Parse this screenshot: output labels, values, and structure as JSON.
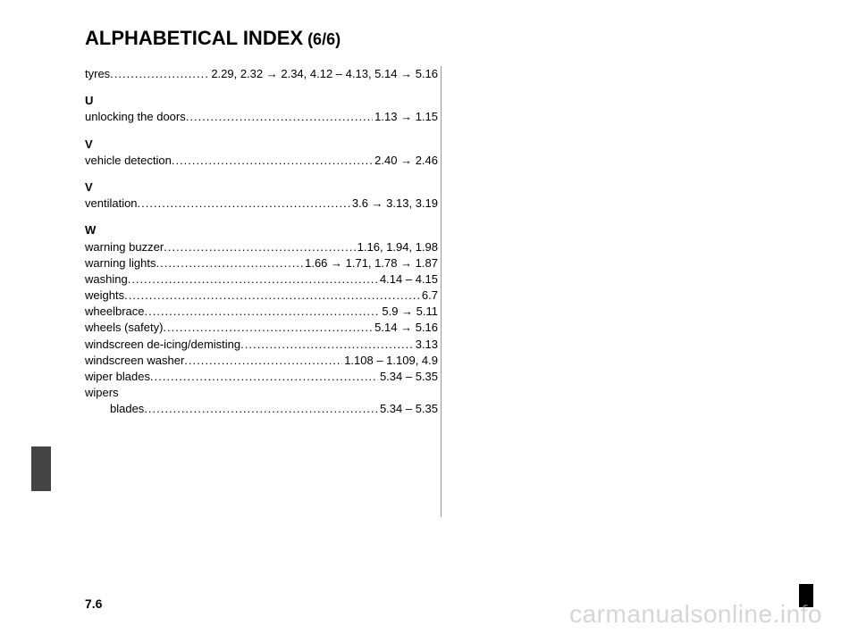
{
  "title": "ALPHABETICAL INDEX",
  "title_sub": " (6/6)",
  "page_number": "7.6",
  "watermark": "carmanualsonline.info",
  "dots": "..............................................................................................",
  "entries": [
    {
      "label": "tyres",
      "pages": "2.29, 2.32 → 2.34, 4.12 – 4.13, 5.14 → 5.16"
    }
  ],
  "section_U": {
    "letter": "U",
    "items": [
      {
        "label": "unlocking the doors ",
        "pages": "1.13 → 1.15"
      }
    ]
  },
  "section_V1": {
    "letter": "V",
    "items": [
      {
        "label": "vehicle detection",
        "pages": "2.40 → 2.46"
      }
    ]
  },
  "section_V2": {
    "letter": "V",
    "items": [
      {
        "label": "ventilation ",
        "pages": "3.6 → 3.13, 3.19"
      }
    ]
  },
  "section_W": {
    "letter": "W",
    "items": [
      {
        "label": "warning buzzer ",
        "pages": " 1.16, 1.94, 1.98"
      },
      {
        "label": "warning lights",
        "pages": " 1.66 → 1.71, 1.78 → 1.87"
      },
      {
        "label": "washing ",
        "pages": " 4.14 – 4.15"
      },
      {
        "label": "weights ",
        "pages": " 6.7"
      },
      {
        "label": "wheelbrace ",
        "pages": "5.9 → 5.11"
      },
      {
        "label": "wheels (safety) ",
        "pages": "5.14 → 5.16"
      },
      {
        "label": "windscreen de-icing/demisting ",
        "pages": " 3.13"
      },
      {
        "label": "windscreen washer",
        "pages": " 1.108 – 1.109, 4.9"
      },
      {
        "label": "wiper blades ",
        "pages": " 5.34 – 5.35"
      },
      {
        "label": "wipers",
        "pages": "",
        "no_dots": true
      },
      {
        "label": "blades ",
        "pages": " 5.34 – 5.35",
        "sub": true
      }
    ]
  }
}
